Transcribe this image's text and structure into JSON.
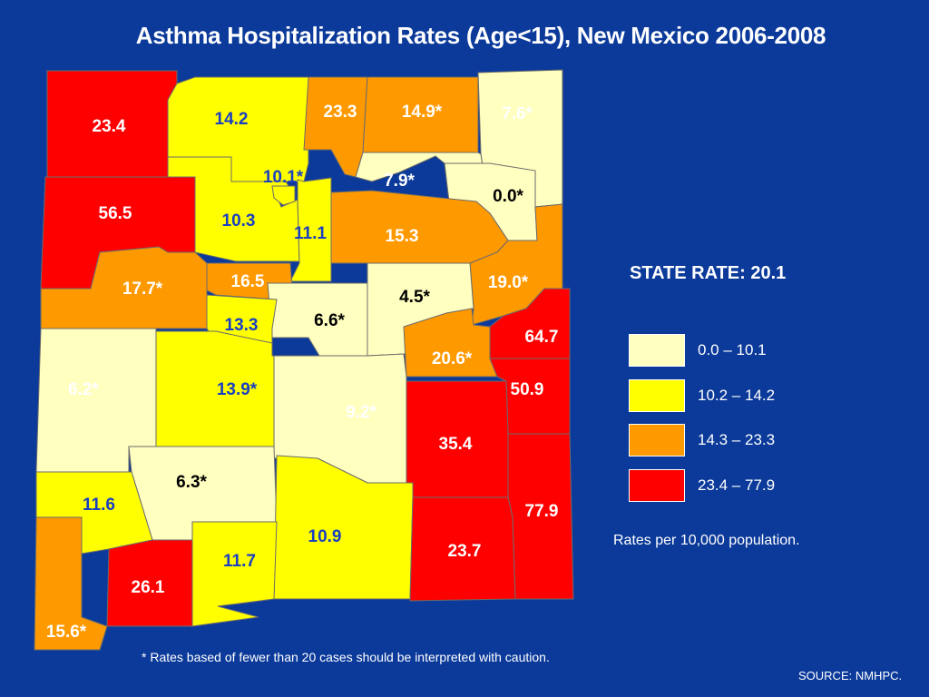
{
  "title": "Asthma Hospitalization Rates (Age<15), New Mexico 2006-2008",
  "state_rate": "STATE RATE: 20.1",
  "colors": {
    "class1": "#ffffc0",
    "class2": "#ffff00",
    "class3": "#ff9900",
    "class4": "#ff0000",
    "label_blue": "#1a3fc0",
    "label_white": "#ffffff",
    "label_black": "#000000",
    "background": "#0b3a9a"
  },
  "legend": [
    {
      "label": "0.0 – 10.1",
      "color": "#ffffc0"
    },
    {
      "label": "10.2 – 14.2",
      "color": "#ffff00"
    },
    {
      "label": "14.3 – 23.3",
      "color": "#ff9900"
    },
    {
      "label": "23.4 – 77.9",
      "color": "#ff0000"
    }
  ],
  "units_note": "Rates per 10,000 population.",
  "footnote": "* Rates based of fewer than 20 cases should be interpreted with caution.",
  "source": "SOURCE: NMHPC.",
  "county_rates": [
    "23.4",
    "14.2",
    "23.3",
    "14.9*",
    "7.6*",
    "10.1*",
    "7.9*",
    "0.0*",
    "56.5",
    "10.3",
    "11.1",
    "15.3",
    "17.7*",
    "16.5",
    "19.0*",
    "4.5*",
    "6.6*",
    "13.3",
    "64.7",
    "20.6*",
    "6.2*",
    "13.9*",
    "9.2*",
    "50.9",
    "35.4",
    "6.3*",
    "11.6",
    "10.9",
    "77.9",
    "11.7",
    "23.7",
    "26.1",
    "15.6*"
  ]
}
